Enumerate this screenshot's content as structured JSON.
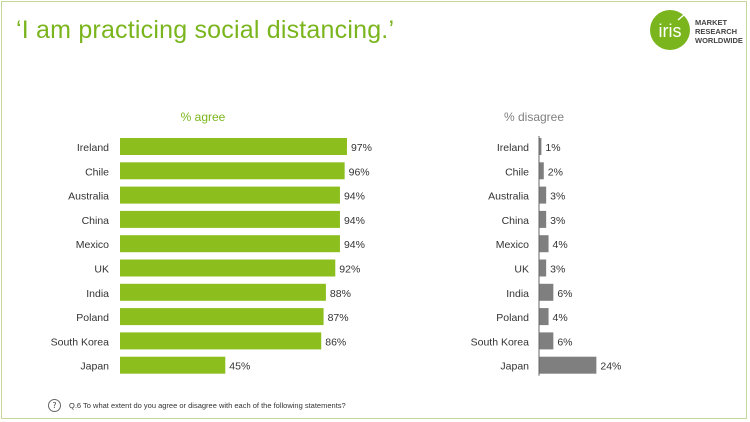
{
  "title": "‘I am practicing social distancing.’",
  "logo": {
    "mark": "iris",
    "lines": [
      "MARKET",
      "RESEARCH",
      "WORLDWIDE"
    ]
  },
  "footnote": "Q.6 To what extent do you agree or disagree with each of the following statements?",
  "help_icon": "?",
  "colors": {
    "accent": "#7ab51d",
    "agree_bar": "#8cbf1e",
    "disagree_bar": "#7f7f7f",
    "frame": "#c3d99a"
  },
  "chart_data": [
    {
      "type": "bar",
      "orientation": "horizontal",
      "title": "% agree",
      "categories": [
        "Ireland",
        "Chile",
        "Australia",
        "China",
        "Mexico",
        "UK",
        "India",
        "Poland",
        "South Korea",
        "Japan"
      ],
      "values": [
        97,
        96,
        94,
        94,
        94,
        92,
        88,
        87,
        86,
        45
      ],
      "labels": [
        "97%",
        "96%",
        "94%",
        "94%",
        "94%",
        "92%",
        "88%",
        "87%",
        "86%",
        "45%"
      ],
      "xlim": [
        0,
        100
      ],
      "color": "#8cbf1e"
    },
    {
      "type": "bar",
      "orientation": "horizontal",
      "title": "% disagree",
      "categories": [
        "Ireland",
        "Chile",
        "Australia",
        "China",
        "Mexico",
        "UK",
        "India",
        "Poland",
        "South Korea",
        "Japan"
      ],
      "values": [
        1,
        2,
        3,
        3,
        4,
        3,
        6,
        4,
        6,
        24
      ],
      "labels": [
        "1%",
        "2%",
        "3%",
        "3%",
        "4%",
        "3%",
        "6%",
        "4%",
        "6%",
        "24%"
      ],
      "xlim": [
        0,
        100
      ],
      "color": "#7f7f7f"
    }
  ]
}
